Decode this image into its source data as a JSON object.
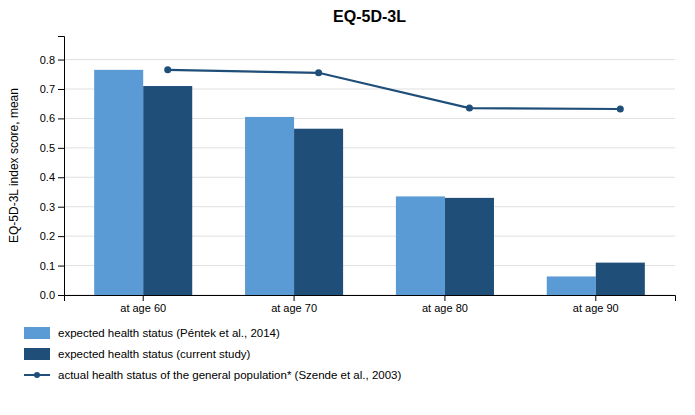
{
  "chart_data": {
    "type": "bar",
    "title": "EQ-5D-3L",
    "ylabel": "EQ-5D-3L index score, mean",
    "categories": [
      "at age 60",
      "at age 70",
      "at age 80",
      "at age 90"
    ],
    "series": [
      {
        "name": "expected health status (Péntek et al., 2014)",
        "type": "bar",
        "color": "#5B9BD5",
        "values": [
          0.765,
          0.605,
          0.335,
          0.063
        ]
      },
      {
        "name": "expected health status (current study)",
        "type": "bar",
        "color": "#1F4E79",
        "values": [
          0.71,
          0.565,
          0.33,
          0.11
        ]
      },
      {
        "name": "actual health status of the general population* (Szende et al., 2003)",
        "type": "line",
        "color": "#1F4E79",
        "marker": "circle",
        "values": [
          0.765,
          0.755,
          0.635,
          0.632
        ]
      }
    ],
    "ylim": [
      0,
      0.88
    ],
    "yticks": [
      {
        "value": 0,
        "label": "0.0"
      },
      0.1,
      0.2,
      0.3,
      0.4,
      0.5,
      0.6,
      0.7,
      0.8
    ],
    "grid": true,
    "legend": "bottom"
  }
}
